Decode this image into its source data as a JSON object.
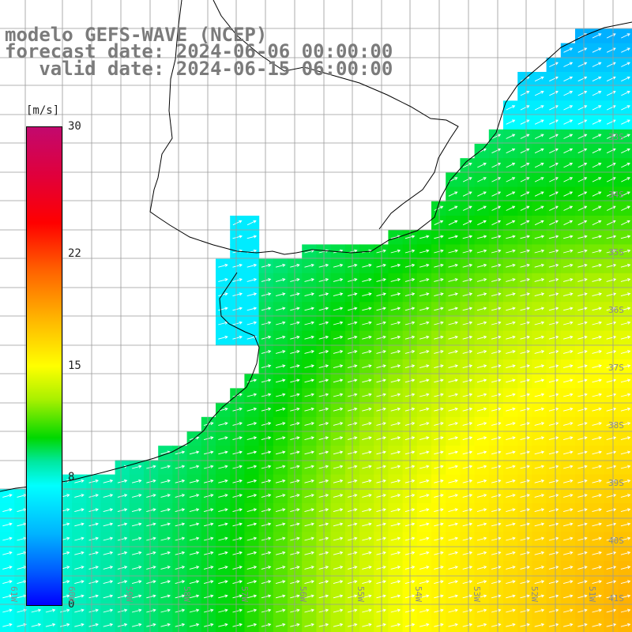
{
  "title": {
    "line1": "modelo GEFS-WAVE (NCEP)",
    "line2": "forecast date: 2024-06-06 00:00:00",
    "line3": "   valid date: 2024-06-15 06:00:00"
  },
  "colorbar": {
    "unit": "[m/s]",
    "ticks": [
      {
        "label": "30",
        "value": 30
      },
      {
        "label": "22",
        "value": 22
      },
      {
        "label": "15",
        "value": 15
      },
      {
        "label": "8",
        "value": 8
      },
      {
        "label": "0",
        "value": 0
      }
    ],
    "colors": [
      "#c2096e",
      "#ff0000",
      "#ff6200",
      "#ffff00",
      "#00d800",
      "#00ffff",
      "#005aff",
      "#0000ff"
    ]
  },
  "grid": {
    "lat_labels": [
      "33S",
      "34S",
      "35S",
      "36S",
      "37S",
      "38S",
      "39S",
      "40S",
      "41S"
    ],
    "lon_labels": [
      "61W",
      "60W",
      "59W",
      "58W",
      "57W",
      "56W",
      "55W",
      "54W",
      "53W",
      "52W",
      "51W"
    ]
  },
  "field": {
    "variable": "wind speed",
    "unit": "m/s",
    "direction_note": "arrows point east-northeast"
  }
}
